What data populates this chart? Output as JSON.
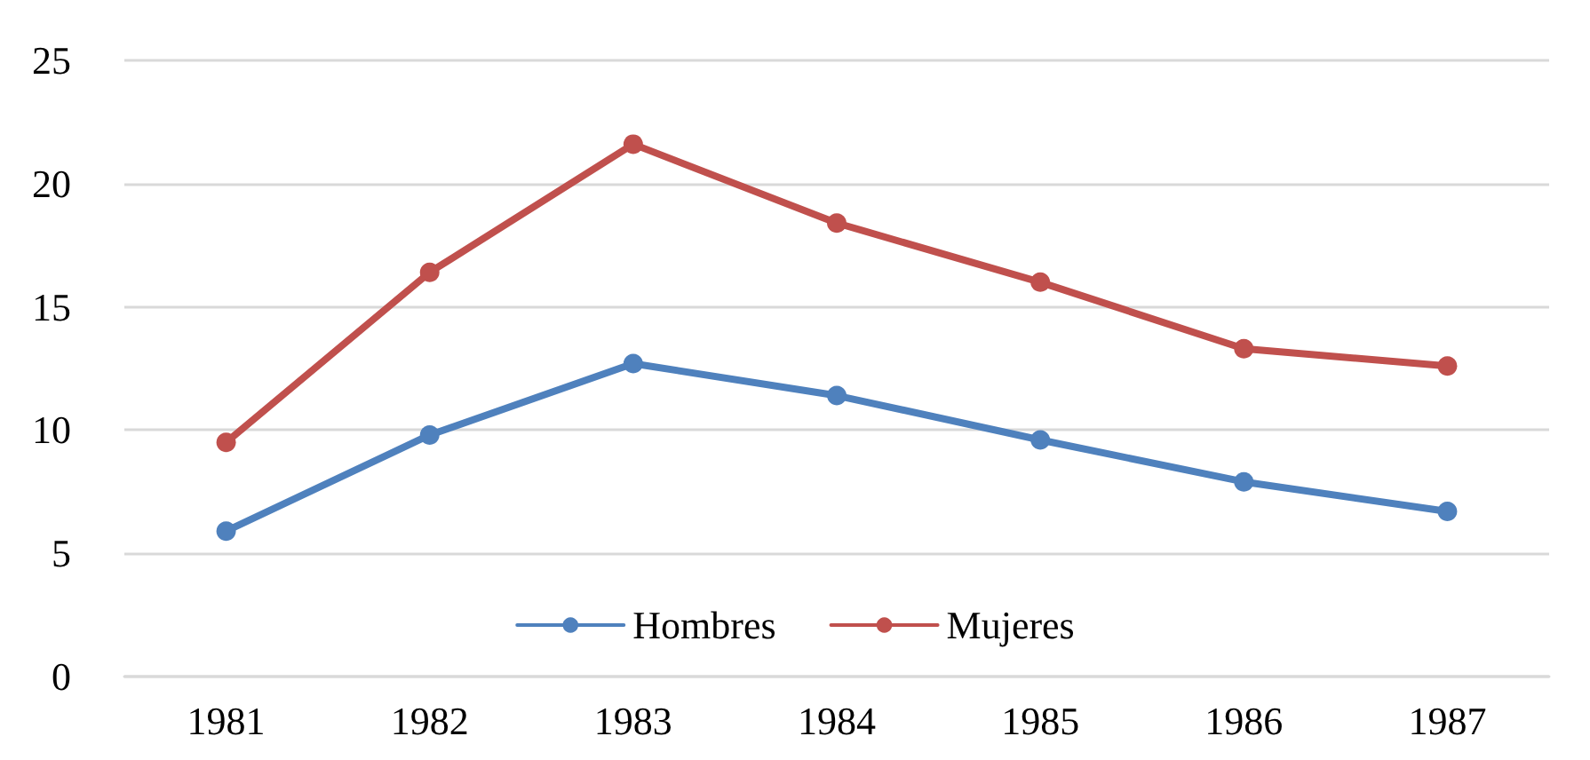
{
  "chart_data": {
    "type": "line",
    "categories": [
      "1981",
      "1982",
      "1983",
      "1984",
      "1985",
      "1986",
      "1987"
    ],
    "series": [
      {
        "name": "Hombres",
        "color": "#4f81bd",
        "values": [
          5.9,
          9.8,
          12.7,
          11.4,
          9.6,
          7.9,
          6.7
        ]
      },
      {
        "name": "Mujeres",
        "color": "#c0504d",
        "values": [
          9.5,
          16.4,
          21.6,
          18.4,
          16.0,
          13.3,
          12.6
        ]
      }
    ],
    "ylim": [
      0,
      25
    ],
    "yticks": [
      0,
      5,
      10,
      15,
      20,
      25
    ],
    "grid": "y",
    "legend": "bottom",
    "marker": "circle",
    "line_style": "solid"
  }
}
